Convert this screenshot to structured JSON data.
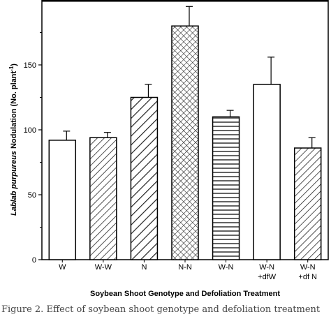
{
  "chart_data": {
    "type": "bar",
    "title": "",
    "xlabel": "Soybean Shoot Genotype and Defoliation Treatment",
    "ylabel_italic": "Lablab purpureus",
    "ylabel_rest": " Nodulation (No. plant",
    "ylabel_sup": "-1",
    "ylabel_close": ")",
    "ylim": [
      0,
      200
    ],
    "yticks": [
      0,
      50,
      100,
      150
    ],
    "grid": false,
    "legend": "none",
    "categories": [
      {
        "line1": "W",
        "line2": ""
      },
      {
        "line1": "W-W",
        "line2": ""
      },
      {
        "line1": "N",
        "line2": ""
      },
      {
        "line1": "N-N",
        "line2": ""
      },
      {
        "line1": "W-N",
        "line2": ""
      },
      {
        "line1": "W-N",
        "line2": "+dfW"
      },
      {
        "line1": "W-N",
        "line2": "+df N"
      }
    ],
    "values": [
      92,
      94,
      125,
      180,
      110,
      135,
      86
    ],
    "errors": [
      7,
      4,
      10,
      15,
      5,
      21,
      8
    ],
    "patterns": [
      "none",
      "diag",
      "diagwide",
      "cross",
      "horiz",
      "none",
      "diag"
    ]
  },
  "caption": "Figure 2. Effect of soybean shoot genotype and defoliation treatment"
}
